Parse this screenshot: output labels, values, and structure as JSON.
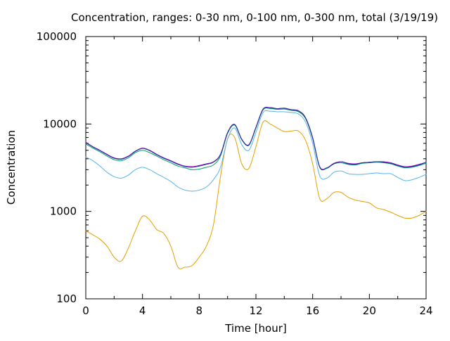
{
  "chart_data": {
    "type": "line",
    "title": "Concentration, ranges: 0-30 nm, 0-100 nm, 0-300 nm, total (3/19/19)",
    "xlabel": "Time [hour]",
    "ylabel": "Concentration",
    "xlim": [
      0,
      24
    ],
    "ylim": [
      100,
      100000
    ],
    "yscale": "log",
    "grid": false,
    "legend": "none",
    "x_ticks": [
      0,
      4,
      8,
      12,
      16,
      20,
      24
    ],
    "x_tick_labels": [
      "0",
      "4",
      "8",
      "12",
      "16",
      "20",
      "24"
    ],
    "y_ticks": [
      100,
      1000,
      10000,
      100000
    ],
    "y_tick_labels": [
      "100",
      "1000",
      "10000",
      "100000"
    ],
    "x": [
      0,
      0.5,
      1,
      1.5,
      2,
      2.5,
      3,
      3.5,
      4,
      4.5,
      5,
      5.5,
      6,
      6.5,
      7,
      7.5,
      8,
      8.5,
      9,
      9.5,
      10,
      10.5,
      11,
      11.5,
      12,
      12.5,
      13,
      13.5,
      14,
      14.5,
      15,
      15.5,
      16,
      16.5,
      17,
      17.5,
      18,
      18.5,
      19,
      19.5,
      20,
      20.5,
      21,
      21.5,
      22,
      22.5,
      23,
      23.5,
      24
    ],
    "series": [
      {
        "color": "#e69f00",
        "values": [
          600,
          540,
          480,
          400,
          300,
          270,
          380,
          600,
          880,
          800,
          620,
          560,
          400,
          230,
          230,
          240,
          300,
          400,
          700,
          2500,
          6800,
          7000,
          3500,
          3100,
          5500,
          10500,
          10000,
          9000,
          8200,
          8300,
          8300,
          6500,
          3500,
          1400,
          1400,
          1650,
          1650,
          1450,
          1350,
          1300,
          1250,
          1100,
          1050,
          980,
          900,
          840,
          840,
          900,
          1000
        ]
      },
      {
        "color": "#56b4e9",
        "values": [
          4200,
          3800,
          3300,
          2800,
          2500,
          2400,
          2600,
          3000,
          3200,
          3000,
          2700,
          2450,
          2200,
          1900,
          1750,
          1700,
          1750,
          1900,
          2300,
          3200,
          6700,
          9000,
          5800,
          5000,
          8000,
          13500,
          14000,
          13800,
          13800,
          13500,
          13000,
          10500,
          6000,
          2550,
          2400,
          2800,
          2900,
          2700,
          2650,
          2650,
          2700,
          2750,
          2700,
          2700,
          2450,
          2250,
          2300,
          2450,
          2650
        ]
      },
      {
        "color": "#009e73",
        "values": [
          5900,
          5300,
          4800,
          4300,
          3900,
          3800,
          4100,
          4700,
          5000,
          4700,
          4300,
          3900,
          3600,
          3300,
          3150,
          3000,
          3050,
          3200,
          3400,
          4300,
          7800,
          9700,
          6600,
          5700,
          9000,
          14500,
          15000,
          14700,
          14800,
          14300,
          13800,
          11500,
          6800,
          3200,
          3100,
          3500,
          3600,
          3450,
          3400,
          3550,
          3600,
          3650,
          3600,
          3500,
          3300,
          3150,
          3200,
          3350,
          3550
        ]
      },
      {
        "color": "#9400d3",
        "values": [
          6200,
          5500,
          5000,
          4500,
          4100,
          4000,
          4300,
          4900,
          5300,
          5000,
          4500,
          4100,
          3800,
          3500,
          3300,
          3250,
          3350,
          3500,
          3700,
          4500,
          8000,
          9900,
          6700,
          5800,
          9200,
          14800,
          15400,
          15000,
          15200,
          14600,
          14200,
          11800,
          7000,
          3250,
          3150,
          3550,
          3700,
          3550,
          3500,
          3600,
          3650,
          3700,
          3700,
          3600,
          3400,
          3250,
          3300,
          3450,
          3650
        ]
      },
      {
        "color": "#1e3a8a",
        "values": [
          6100,
          5450,
          4950,
          4450,
          4050,
          3950,
          4250,
          4850,
          5250,
          4950,
          4450,
          4050,
          3750,
          3450,
          3250,
          3200,
          3300,
          3450,
          3650,
          4450,
          7900,
          9850,
          6650,
          5750,
          9100,
          14700,
          15300,
          14900,
          15100,
          14500,
          14100,
          11700,
          6900,
          3200,
          3150,
          3500,
          3700,
          3500,
          3450,
          3600,
          3650,
          3700,
          3650,
          3550,
          3350,
          3200,
          3250,
          3400,
          3650
        ]
      }
    ]
  }
}
